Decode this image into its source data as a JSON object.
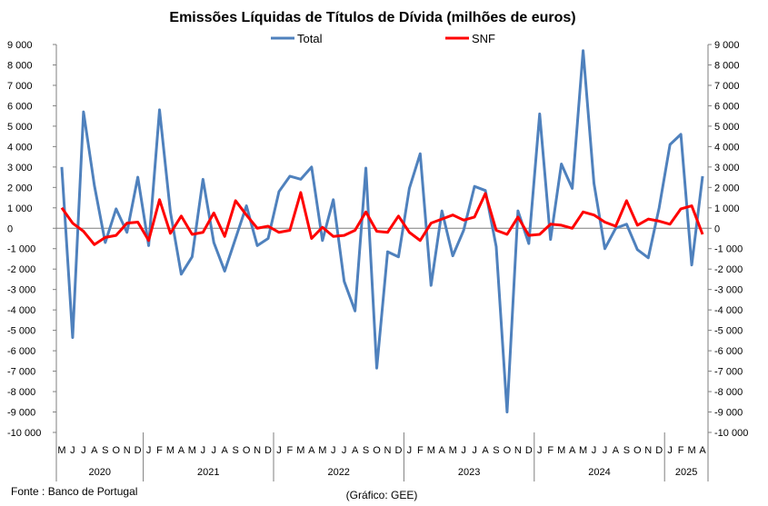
{
  "chart_data": {
    "type": "line",
    "title": "Emissões Líquidas de Títulos de Dívida (milhões de euros)",
    "source": "Fonte : Banco de Portugal",
    "credit": "(Gráfico: GEE)",
    "ylim": [
      -10000,
      9000
    ],
    "ytick_step": 1000,
    "yticks_labels": [
      "9 000",
      "8 000",
      "7 000",
      "6 000",
      "5 000",
      "4 000",
      "3 000",
      "2 000",
      "1 000",
      "0",
      "-1 000",
      "-2 000",
      "-3 000",
      "-4 000",
      "-5 000",
      "-6 000",
      "-7 000",
      "-8 000",
      "-9 000",
      "-10 000"
    ],
    "month_labels": [
      "M",
      "J",
      "J",
      "A",
      "S",
      "O",
      "N",
      "D",
      "J",
      "F",
      "M",
      "A",
      "M",
      "J",
      "J",
      "A",
      "S",
      "O",
      "N",
      "D",
      "J",
      "F",
      "M",
      "A",
      "M",
      "J",
      "J",
      "A",
      "S",
      "O",
      "N",
      "D",
      "J",
      "F",
      "M",
      "A",
      "M",
      "J",
      "J",
      "A",
      "S",
      "O",
      "N",
      "D",
      "J",
      "F",
      "M",
      "A",
      "M",
      "J",
      "J",
      "A",
      "S",
      "O",
      "N",
      "D",
      "J",
      "F",
      "M",
      "A"
    ],
    "years": [
      {
        "label": "2020",
        "start": 0,
        "count": 8
      },
      {
        "label": "2021",
        "start": 8,
        "count": 12
      },
      {
        "label": "2022",
        "start": 20,
        "count": 12
      },
      {
        "label": "2023",
        "start": 32,
        "count": 12
      },
      {
        "label": "2024",
        "start": 44,
        "count": 12
      },
      {
        "label": "2025",
        "start": 56,
        "count": 4
      }
    ],
    "series": [
      {
        "name": "Total",
        "color": "#4f81bd",
        "values": [
          3000,
          -5350,
          5700,
          2100,
          -700,
          950,
          -200,
          2500,
          -850,
          5800,
          800,
          -2250,
          -1400,
          2400,
          -700,
          -2100,
          -500,
          1100,
          -850,
          -500,
          1800,
          2550,
          2400,
          3000,
          -600,
          1400,
          -2600,
          -4050,
          2950,
          -6850,
          -1150,
          -1400,
          1950,
          3650,
          -2800,
          850,
          -1350,
          -100,
          2050,
          1850,
          -900,
          -9000,
          850,
          -750,
          5600,
          -550,
          3150,
          1950,
          8700,
          2200,
          -1000,
          0,
          200,
          -1050,
          -1450,
          1000,
          4100,
          4600,
          -1800,
          2550
        ]
      },
      {
        "name": "SNF",
        "color": "#ff0000",
        "values": [
          1000,
          250,
          -150,
          -800,
          -450,
          -350,
          250,
          300,
          -600,
          1400,
          -250,
          600,
          -300,
          -200,
          750,
          -400,
          1350,
          650,
          0,
          100,
          -200,
          -100,
          1750,
          -500,
          50,
          -400,
          -350,
          -100,
          800,
          -150,
          -200,
          600,
          -200,
          -600,
          250,
          450,
          650,
          400,
          550,
          1700,
          -100,
          -300,
          550,
          -350,
          -300,
          200,
          150,
          0,
          800,
          650,
          300,
          100,
          1350,
          150,
          450,
          350,
          200,
          950,
          1100,
          -300
        ]
      }
    ]
  }
}
